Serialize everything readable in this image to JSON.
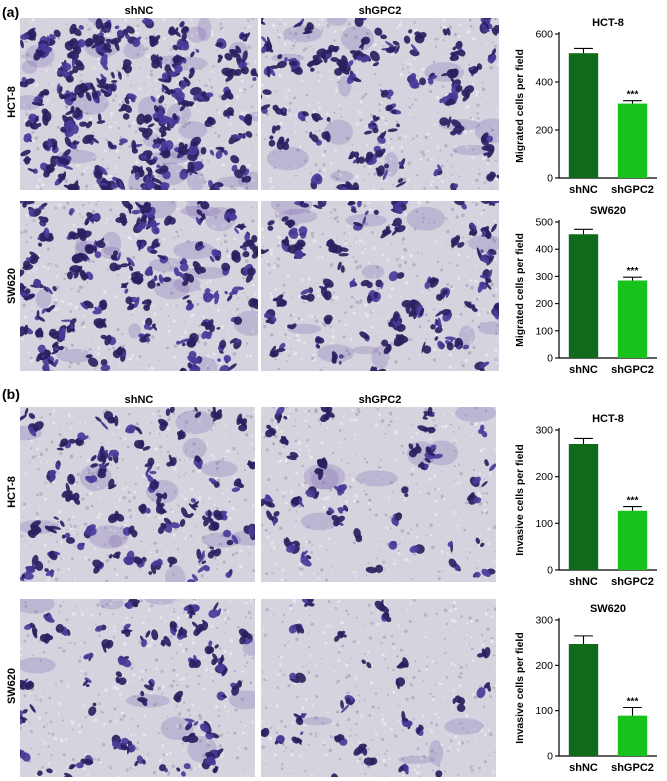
{
  "panels": {
    "a": {
      "label": "(a)",
      "col_headers": [
        "shNC",
        "shGPC2"
      ],
      "row_headers": [
        "HCT-8",
        "SW620"
      ]
    },
    "b": {
      "label": "(b)",
      "col_headers": [
        "shNC",
        "shGPC2"
      ],
      "row_headers": [
        "HCT-8",
        "SW620"
      ]
    }
  },
  "colors": {
    "shNC": "#0f6b1a",
    "shGPC2": "#19c11d",
    "stain_dark": "#2a2060",
    "stain_violet": "#4b3a9a",
    "membrane_light": "#d6d2de"
  },
  "chart_data": [
    {
      "type": "bar",
      "title": "HCT-8",
      "ylabel": "Migrated cells per field",
      "categories": [
        "shNC",
        "shGPC2"
      ],
      "values": [
        520,
        310
      ],
      "errors": [
        20,
        12
      ],
      "ylim": [
        0,
        600
      ],
      "yticks": [
        0,
        200,
        400,
        600
      ],
      "annotation": "***"
    },
    {
      "type": "bar",
      "title": "SW620",
      "ylabel": "Migrated cells per field",
      "categories": [
        "shNC",
        "shGPC2"
      ],
      "values": [
        455,
        285
      ],
      "errors": [
        18,
        12
      ],
      "ylim": [
        0,
        500
      ],
      "yticks": [
        0,
        100,
        200,
        300,
        400,
        500
      ],
      "annotation": "***"
    },
    {
      "type": "bar",
      "title": "HCT-8",
      "ylabel": "Invasive cells per field",
      "categories": [
        "shNC",
        "shGPC2"
      ],
      "values": [
        270,
        127
      ],
      "errors": [
        12,
        9
      ],
      "ylim": [
        0,
        300
      ],
      "yticks": [
        0,
        100,
        200,
        300
      ],
      "annotation": "***"
    },
    {
      "type": "bar",
      "title": "SW620",
      "ylabel": "Invasive cells per field",
      "categories": [
        "shNC",
        "shGPC2"
      ],
      "values": [
        247,
        89
      ],
      "errors": [
        18,
        18
      ],
      "ylim": [
        0,
        300
      ],
      "yticks": [
        0,
        100,
        200,
        300
      ],
      "annotation": "***"
    }
  ]
}
